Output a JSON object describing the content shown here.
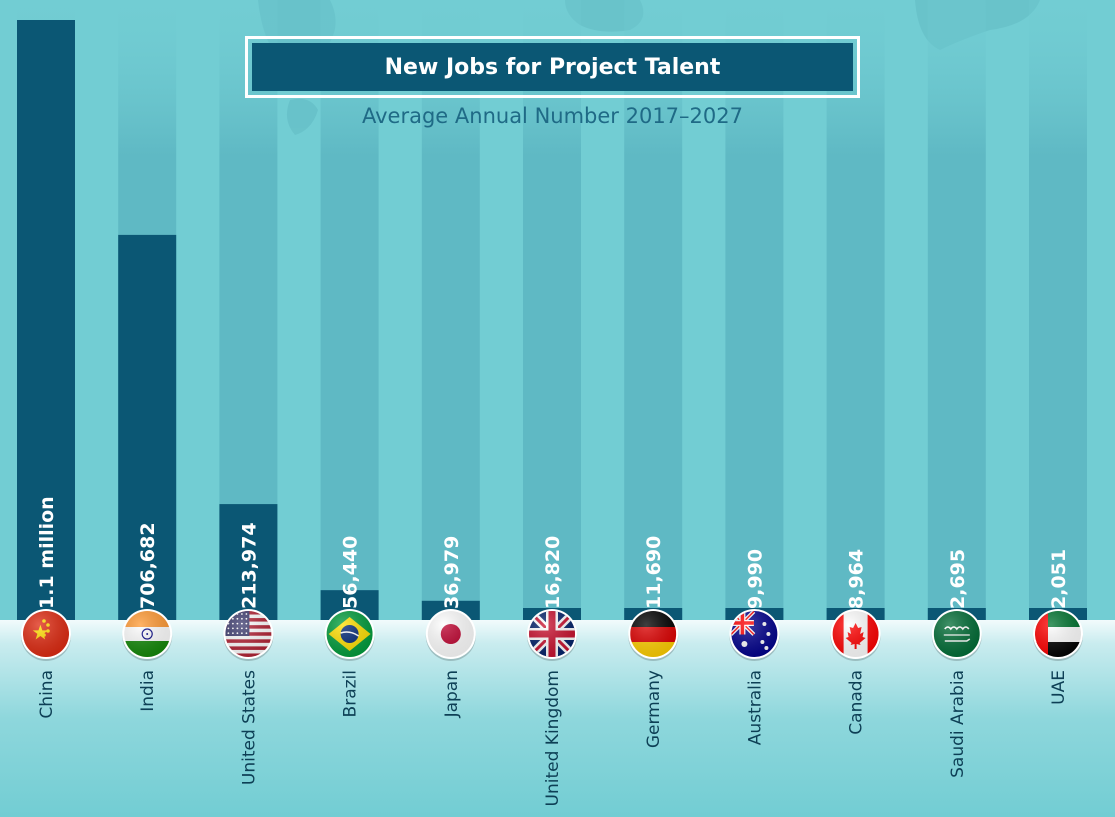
{
  "title": "New Jobs for Project Talent",
  "subtitle": "Average Annual Number 2017–2027",
  "colors": {
    "background": "#72cdd3",
    "bar": "#0b5774",
    "track": "#5fb9c4",
    "title_bg": "#0b5774",
    "text_light": "#ffffff",
    "text_dark": "#0d3f55"
  },
  "chart_data": {
    "type": "bar",
    "title": "New Jobs for Project Talent",
    "subtitle": "Average Annual Number 2017–2027",
    "xlabel": "",
    "ylabel": "",
    "grid": false,
    "legend": "none",
    "ylim": [
      0,
      1100000
    ],
    "categories": [
      "China",
      "India",
      "United States",
      "Brazil",
      "Japan",
      "United Kingdom",
      "Germany",
      "Australia",
      "Canada",
      "Saudi Arabia",
      "UAE"
    ],
    "values": [
      1100000,
      706682,
      213974,
      56440,
      36979,
      16820,
      11690,
      9990,
      8964,
      2695,
      2051
    ],
    "value_labels": [
      "1.1 million",
      "706,682",
      "213,974",
      "56,440",
      "36,979",
      "16,820",
      "11,690",
      "9,990",
      "8,964",
      "2,695",
      "2,051"
    ],
    "flag_icons": [
      "china-flag-icon",
      "india-flag-icon",
      "united-states-flag-icon",
      "brazil-flag-icon",
      "japan-flag-icon",
      "united-kingdom-flag-icon",
      "germany-flag-icon",
      "australia-flag-icon",
      "canada-flag-icon",
      "saudi-arabia-flag-icon",
      "uae-flag-icon"
    ]
  }
}
